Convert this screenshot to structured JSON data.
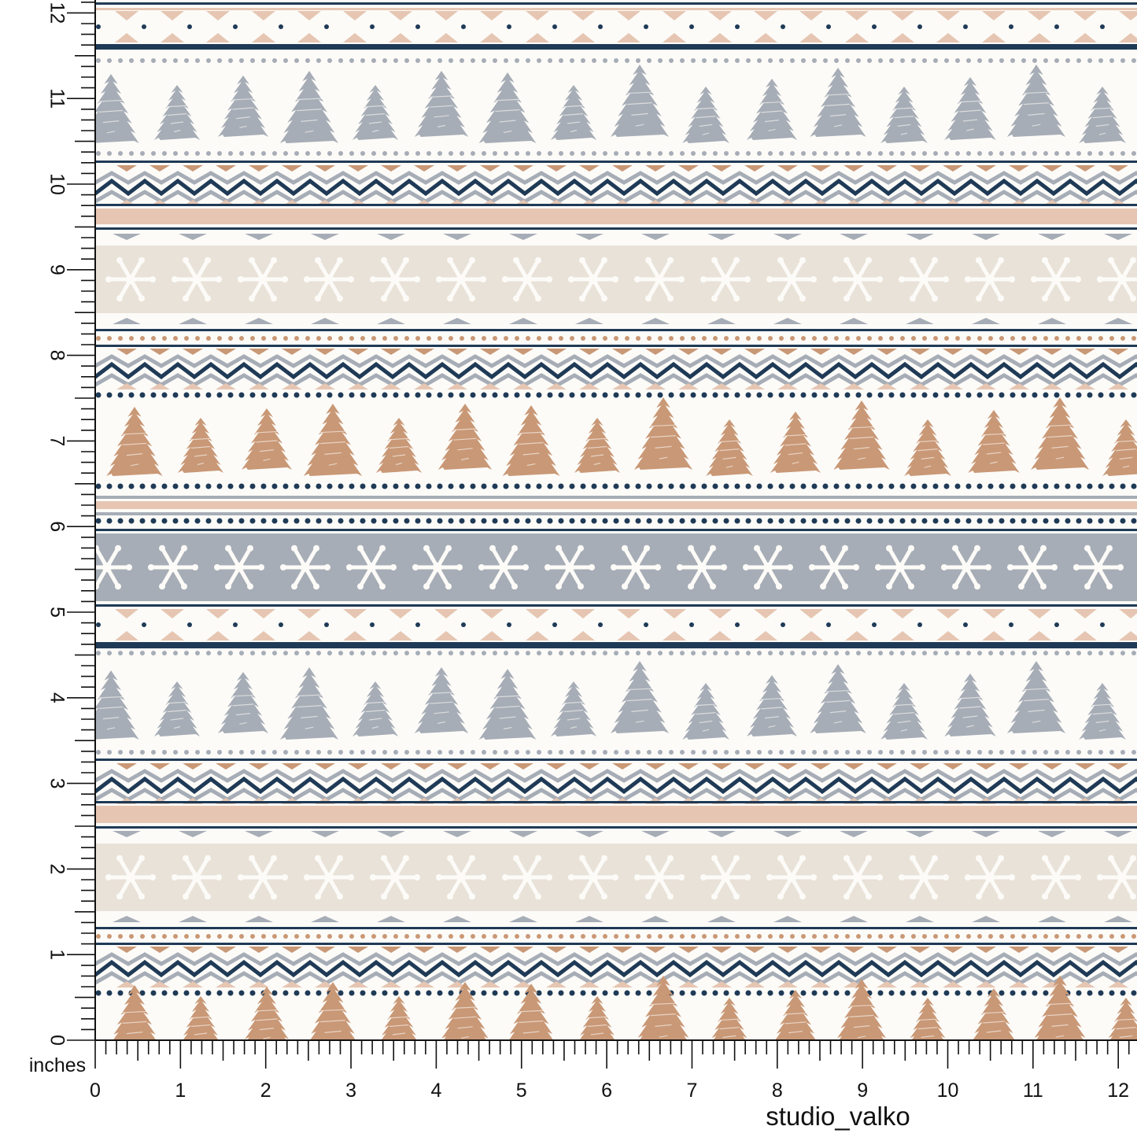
{
  "ruler": {
    "unit": "inches",
    "x_labels": [
      0,
      1,
      2,
      3,
      4,
      5,
      6,
      7,
      8,
      9,
      10,
      11,
      12
    ],
    "y_labels": [
      0,
      1,
      2,
      3,
      4,
      5,
      6,
      7,
      8,
      9,
      10,
      11,
      12
    ]
  },
  "credit": "studio_valko"
}
